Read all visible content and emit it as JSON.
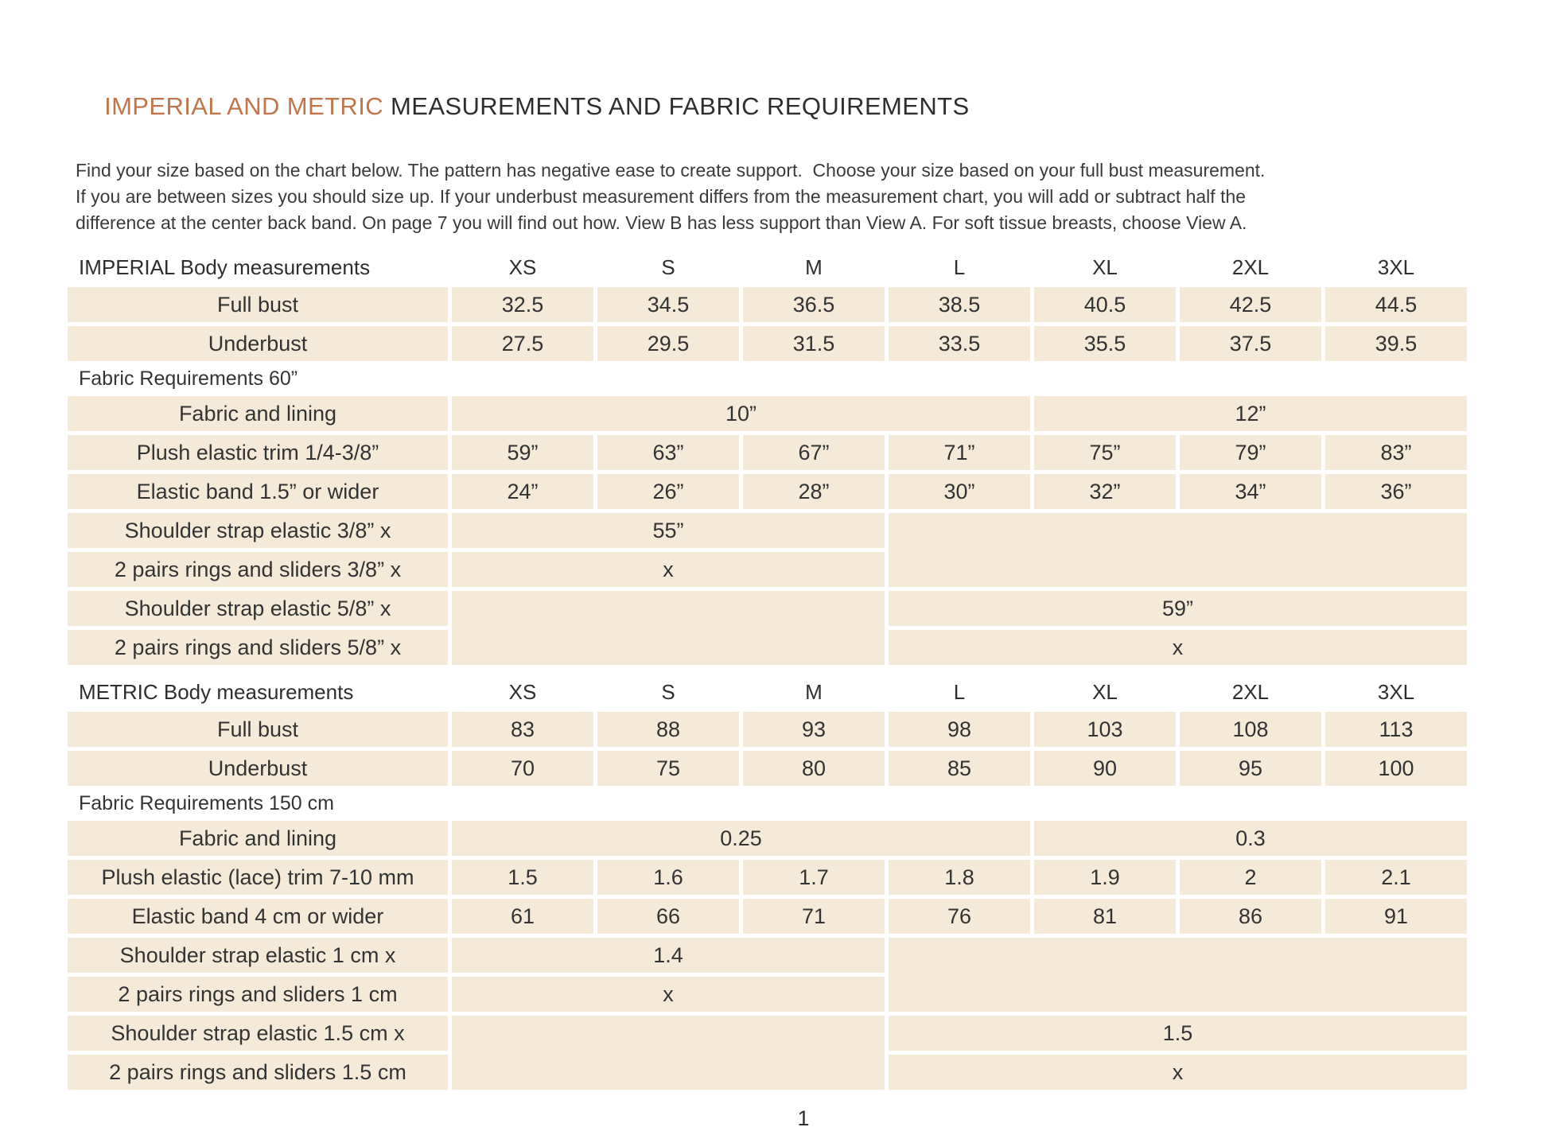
{
  "colors": {
    "accent": "#c1754b",
    "cell_bg": "#f4ead7",
    "text": "#303030"
  },
  "page": {
    "title_accent": "IMPERIAL AND METRIC",
    "title_rest": " MEASUREMENTS AND FABRIC REQUIREMENTS",
    "intro_lines": [
      "Find your size based on the chart below. The pattern has negative ease to create support.  Choose your size based on your full bust measurement.",
      "If you are between sizes you should size up. If your underbust measurement differs from the measurement chart, you will add or subtract half the",
      "difference at the center back band. On page 7 you will find out how. View B has less support than View A. For soft tissue breasts, choose View A."
    ],
    "page_number": "1"
  },
  "tables": [
    {
      "name": "imperial",
      "header_label": "IMPERIAL Body measurements",
      "sizes": [
        "XS",
        "S",
        "M",
        "L",
        "XL",
        "2XL",
        "3XL"
      ],
      "rows": [
        {
          "label": "Full bust",
          "cells": [
            {
              "t": "32.5"
            },
            {
              "t": "34.5"
            },
            {
              "t": "36.5"
            },
            {
              "t": "38.5"
            },
            {
              "t": "40.5"
            },
            {
              "t": "42.5"
            },
            {
              "t": "44.5"
            }
          ]
        },
        {
          "label": "Underbust",
          "cells": [
            {
              "t": "27.5"
            },
            {
              "t": "29.5"
            },
            {
              "t": "31.5"
            },
            {
              "t": "33.5"
            },
            {
              "t": "35.5"
            },
            {
              "t": "37.5"
            },
            {
              "t": "39.5"
            }
          ]
        },
        {
          "label": "Fabric Requirements 60”",
          "section": true
        },
        {
          "label": "Fabric and lining",
          "cells": [
            {
              "t": "10”",
              "span": 4,
              "small": true
            },
            {
              "t": "12”",
              "span": 3,
              "small": true
            }
          ]
        },
        {
          "label": "Plush elastic trim 1/4-3/8”",
          "cells": [
            {
              "t": "59”"
            },
            {
              "t": "63”"
            },
            {
              "t": "67”"
            },
            {
              "t": "71”"
            },
            {
              "t": "75”"
            },
            {
              "t": "79”"
            },
            {
              "t": "83”"
            }
          ]
        },
        {
          "label": "Elastic band 1.5” or wider",
          "cells": [
            {
              "t": "24”"
            },
            {
              "t": "26”"
            },
            {
              "t": "28”"
            },
            {
              "t": "30”"
            },
            {
              "t": "32”"
            },
            {
              "t": "34”"
            },
            {
              "t": "36”"
            }
          ]
        },
        {
          "label": "Shoulder strap elastic 3/8” x",
          "cells": [
            {
              "t": "55”",
              "span": 3
            },
            {
              "t": "",
              "span": 4,
              "rowspan": 2
            }
          ]
        },
        {
          "label": "2 pairs rings and sliders 3/8” x",
          "cells": [
            {
              "t": "x",
              "span": 3
            }
          ]
        },
        {
          "label": "Shoulder strap elastic 5/8” x",
          "cells": [
            {
              "t": "",
              "span": 3,
              "rowspan": 2
            },
            {
              "t": "59”",
              "span": 4
            }
          ]
        },
        {
          "label": "2 pairs rings and sliders 5/8” x",
          "cells": [
            {
              "t": "x",
              "span": 4
            }
          ]
        }
      ]
    },
    {
      "name": "metric",
      "header_label": "METRIC Body measurements",
      "sizes": [
        "XS",
        "S",
        "M",
        "L",
        "XL",
        "2XL",
        "3XL"
      ],
      "rows": [
        {
          "label": "Full bust",
          "cells": [
            {
              "t": "83"
            },
            {
              "t": "88"
            },
            {
              "t": "93"
            },
            {
              "t": "98"
            },
            {
              "t": "103"
            },
            {
              "t": "108"
            },
            {
              "t": "113"
            }
          ]
        },
        {
          "label": "Underbust",
          "cells": [
            {
              "t": "70"
            },
            {
              "t": "75"
            },
            {
              "t": "80"
            },
            {
              "t": "85"
            },
            {
              "t": "90"
            },
            {
              "t": "95"
            },
            {
              "t": "100"
            }
          ]
        },
        {
          "label": "Fabric Requirements 150 cm",
          "section": true
        },
        {
          "label": "Fabric and lining",
          "cells": [
            {
              "t": "0.25",
              "span": 4
            },
            {
              "t": "0.3",
              "span": 3
            }
          ]
        },
        {
          "label": "Plush elastic (lace) trim 7-10 mm",
          "cells": [
            {
              "t": "1.5"
            },
            {
              "t": "1.6"
            },
            {
              "t": "1.7"
            },
            {
              "t": "1.8"
            },
            {
              "t": "1.9"
            },
            {
              "t": "2"
            },
            {
              "t": "2.1"
            }
          ]
        },
        {
          "label": "Elastic band 4 cm or wider",
          "cells": [
            {
              "t": "61"
            },
            {
              "t": "66"
            },
            {
              "t": "71"
            },
            {
              "t": "76"
            },
            {
              "t": "81"
            },
            {
              "t": "86"
            },
            {
              "t": "91"
            }
          ]
        },
        {
          "label": "Shoulder strap elastic 1 cm x",
          "cells": [
            {
              "t": "1.4",
              "span": 3
            },
            {
              "t": "",
              "span": 4,
              "rowspan": 2
            }
          ]
        },
        {
          "label": "2 pairs rings and sliders 1 cm",
          "cells": [
            {
              "t": "x",
              "span": 3
            }
          ]
        },
        {
          "label": "Shoulder strap elastic 1.5 cm x",
          "cells": [
            {
              "t": "",
              "span": 3,
              "rowspan": 2
            },
            {
              "t": "1.5",
              "span": 4
            }
          ]
        },
        {
          "label": "2 pairs rings and sliders 1.5 cm",
          "cells": [
            {
              "t": "x",
              "span": 4
            }
          ]
        }
      ]
    }
  ]
}
